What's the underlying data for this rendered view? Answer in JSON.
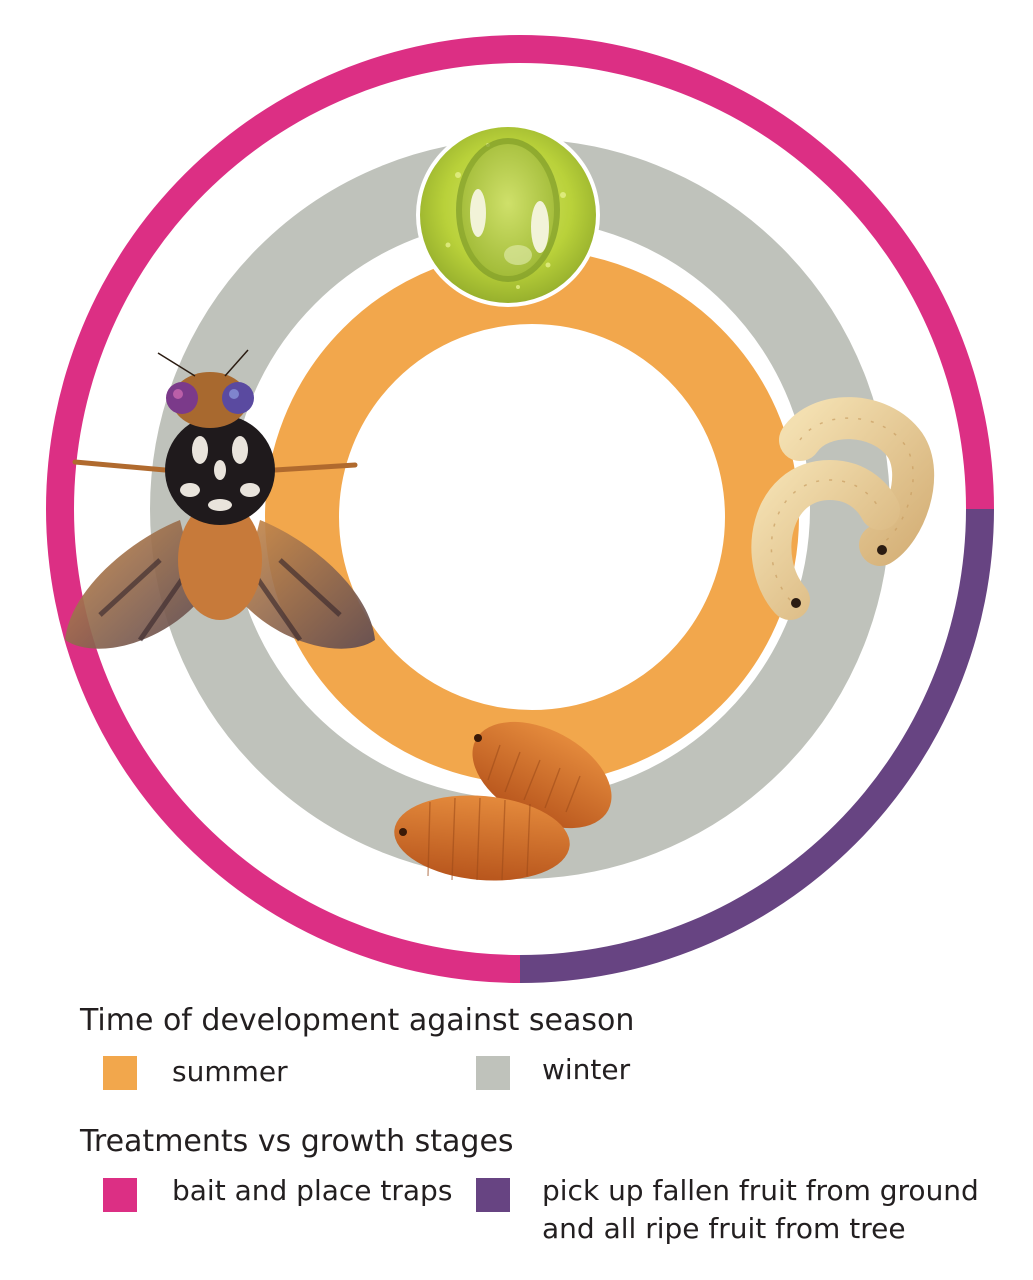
{
  "colors": {
    "summer": "#f2a74c",
    "winter": "#bfc2bb",
    "bait_traps": "#dc2f84",
    "pick_up_fruit": "#674482",
    "background": "#ffffff"
  },
  "stages": [
    {
      "name": "egg",
      "icon": "egg-on-leaf-icon"
    },
    {
      "name": "larva",
      "icon": "larvae-icon"
    },
    {
      "name": "pupa",
      "icon": "pupae-icon"
    },
    {
      "name": "adult",
      "icon": "fruit-fly-icon"
    }
  ],
  "treatment_ring": {
    "bait_traps_fraction": 0.75,
    "pick_up_fruit_fraction": 0.25
  },
  "legend": {
    "development_title": "Time of development against season",
    "summer_label": "summer",
    "winter_label": "winter",
    "treatments_title": "Treatments vs growth stages",
    "bait_label": "bait and place traps",
    "pickup_label_line1": "pick up fallen fruit from ground",
    "pickup_label_line2": "and all ripe fruit from tree"
  }
}
